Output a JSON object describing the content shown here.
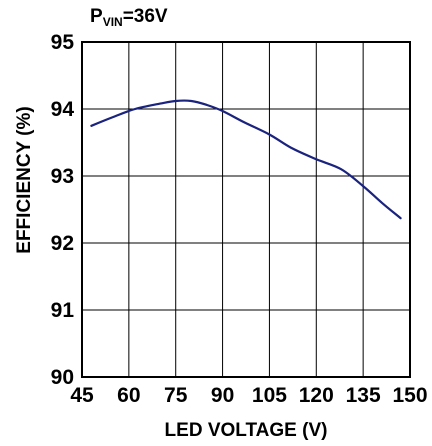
{
  "condition": {
    "prefix": "P",
    "subscript": "VIN",
    "suffix": "=36V"
  },
  "chart_data": {
    "type": "line",
    "title": "",
    "xlabel": "LED VOLTAGE (V)",
    "ylabel": "EFFICIENCY (%)",
    "xlim": [
      45,
      150
    ],
    "ylim": [
      90,
      95
    ],
    "x_ticks": [
      "45",
      "60",
      "75",
      "90",
      "105",
      "120",
      "135",
      "150"
    ],
    "y_ticks": [
      "90",
      "91",
      "92",
      "93",
      "94",
      "95"
    ],
    "grid": true,
    "legend": "none",
    "line_color": "#1a237e",
    "series": [
      {
        "x": [
          48,
          55,
          62,
          70,
          75,
          80,
          85,
          90,
          97,
          105,
          112,
          120,
          128,
          135,
          141,
          147
        ],
        "values": [
          93.75,
          93.88,
          94.0,
          94.08,
          94.12,
          94.12,
          94.06,
          93.97,
          93.8,
          93.62,
          93.42,
          93.25,
          93.1,
          92.85,
          92.6,
          92.37
        ]
      }
    ]
  }
}
